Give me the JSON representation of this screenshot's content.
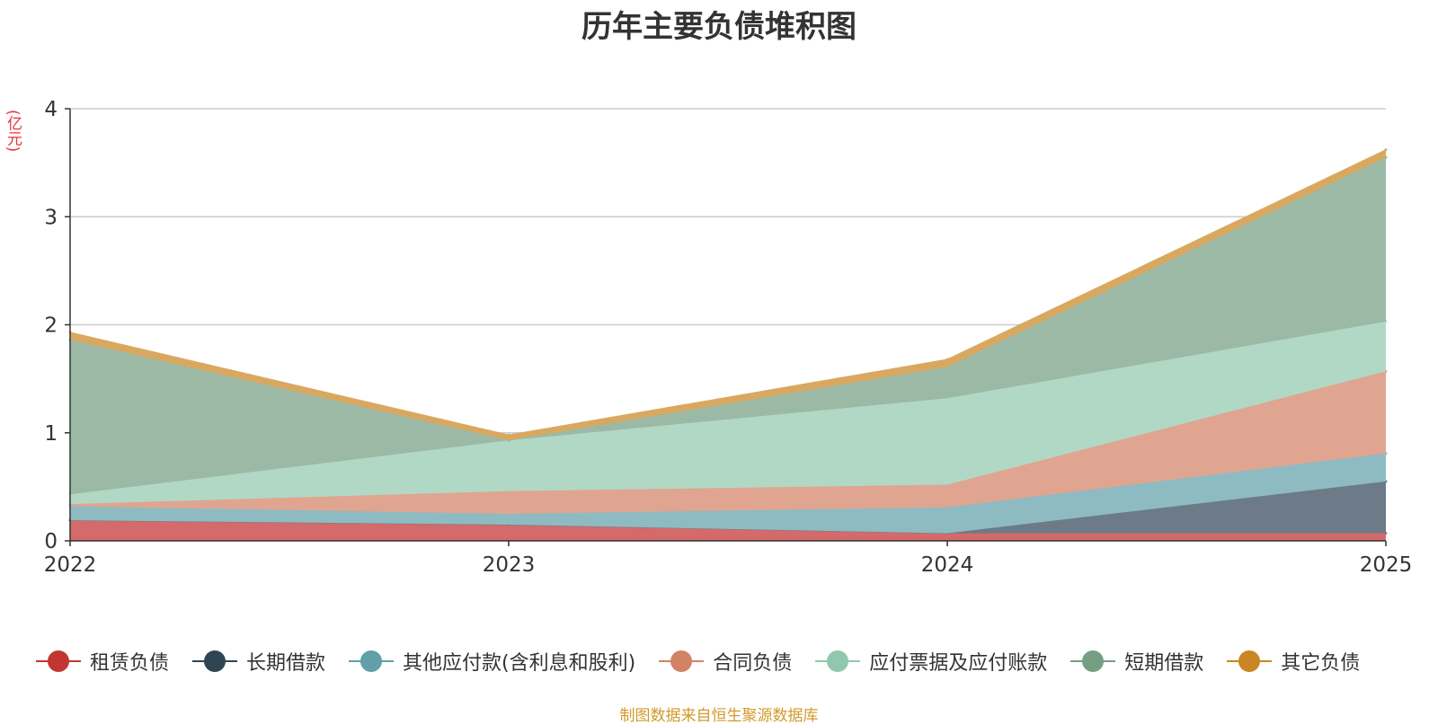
{
  "chart_data": {
    "type": "area",
    "stacked": true,
    "title": "历年主要负债堆积图",
    "ylabel": "(亿元)",
    "x": [
      "2022",
      "2023",
      "2024",
      "2025"
    ],
    "ylim": [
      0,
      4
    ],
    "yticks": [
      "0",
      "1",
      "2",
      "3",
      "4"
    ],
    "series": [
      {
        "name": "租赁负债",
        "color": "#c23531",
        "fill": "#d46a6a",
        "values": [
          0.19,
          0.15,
          0.07,
          0.07
        ]
      },
      {
        "name": "长期借款",
        "color": "#2f4554",
        "fill": "#6c7b87",
        "values": [
          0.0,
          0.0,
          0.0,
          0.48
        ]
      },
      {
        "name": "其他应付款(含利息和股利)",
        "color": "#61a0a8",
        "fill": "#8ebbc1",
        "values": [
          0.13,
          0.1,
          0.24,
          0.26
        ]
      },
      {
        "name": "合同负债",
        "color": "#d48265",
        "fill": "#e0a590",
        "values": [
          0.02,
          0.21,
          0.21,
          0.76
        ]
      },
      {
        "name": "应付票据及应付账款",
        "color": "#91c7ae",
        "fill": "#b1d8c5",
        "values": [
          0.09,
          0.47,
          0.8,
          0.46
        ]
      },
      {
        "name": "短期借款",
        "color": "#749f83",
        "fill": "#9bb9a5",
        "values": [
          1.43,
          0.0,
          0.29,
          1.52
        ]
      },
      {
        "name": "其它负债",
        "color": "#ca8622",
        "fill": "#d9a860",
        "values": [
          0.07,
          0.05,
          0.07,
          0.07
        ]
      }
    ],
    "legend_position": "bottom",
    "grid": true
  },
  "source_text": "制图数据来自恒生聚源数据库"
}
